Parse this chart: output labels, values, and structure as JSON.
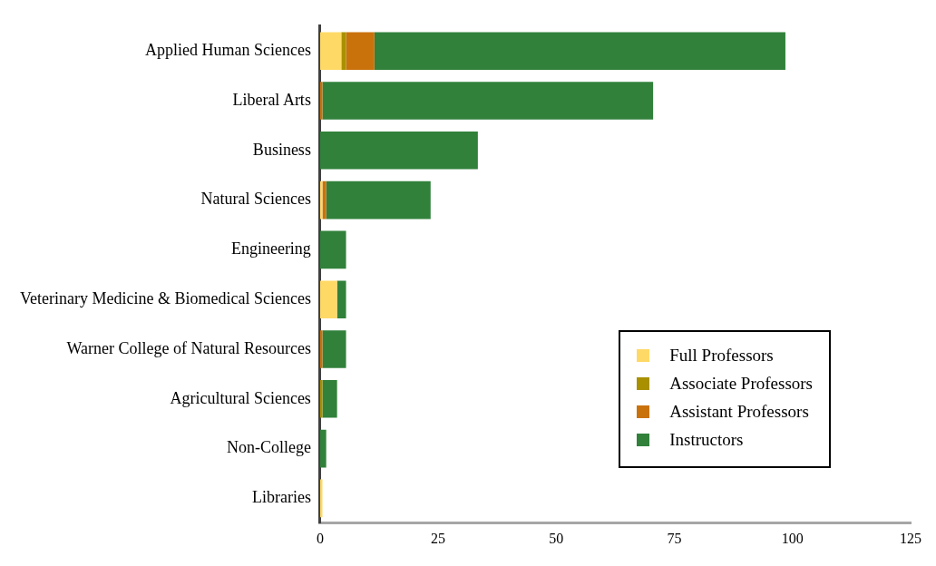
{
  "chart_data": {
    "type": "bar",
    "orientation": "horizontal",
    "stacked": true,
    "categories": [
      "Applied Human Sciences",
      "Liberal Arts",
      "Business",
      "Natural Sciences",
      "Engineering",
      "Veterinary Medicine & Biomedical Sciences",
      "Warner College of Natural Resources",
      "Agricultural Sciences",
      "Non-College",
      "Libraries"
    ],
    "series": [
      {
        "name": "Full Professors",
        "color": "#ffd966",
        "values": [
          4.5,
          0,
          0,
          0.5,
          0,
          3.6,
          0,
          0,
          0,
          0.5
        ]
      },
      {
        "name": "Associate Professors",
        "color": "#a89000",
        "values": [
          1,
          0,
          0,
          0,
          0,
          0,
          0,
          0.5,
          0,
          0
        ]
      },
      {
        "name": "Assistant Professors",
        "color": "#c9720c",
        "values": [
          6,
          0.5,
          0,
          0.8,
          0,
          0,
          0.5,
          0,
          0,
          0
        ]
      },
      {
        "name": "Instructors",
        "color": "#31813b",
        "values": [
          87,
          70,
          33.4,
          22.1,
          5.5,
          1.9,
          5,
          3.1,
          1.3,
          0
        ]
      }
    ],
    "xlim": [
      0,
      125
    ],
    "xticks": [
      0,
      25,
      50,
      75,
      100,
      125
    ],
    "grid": false,
    "legend": "bottom right"
  }
}
